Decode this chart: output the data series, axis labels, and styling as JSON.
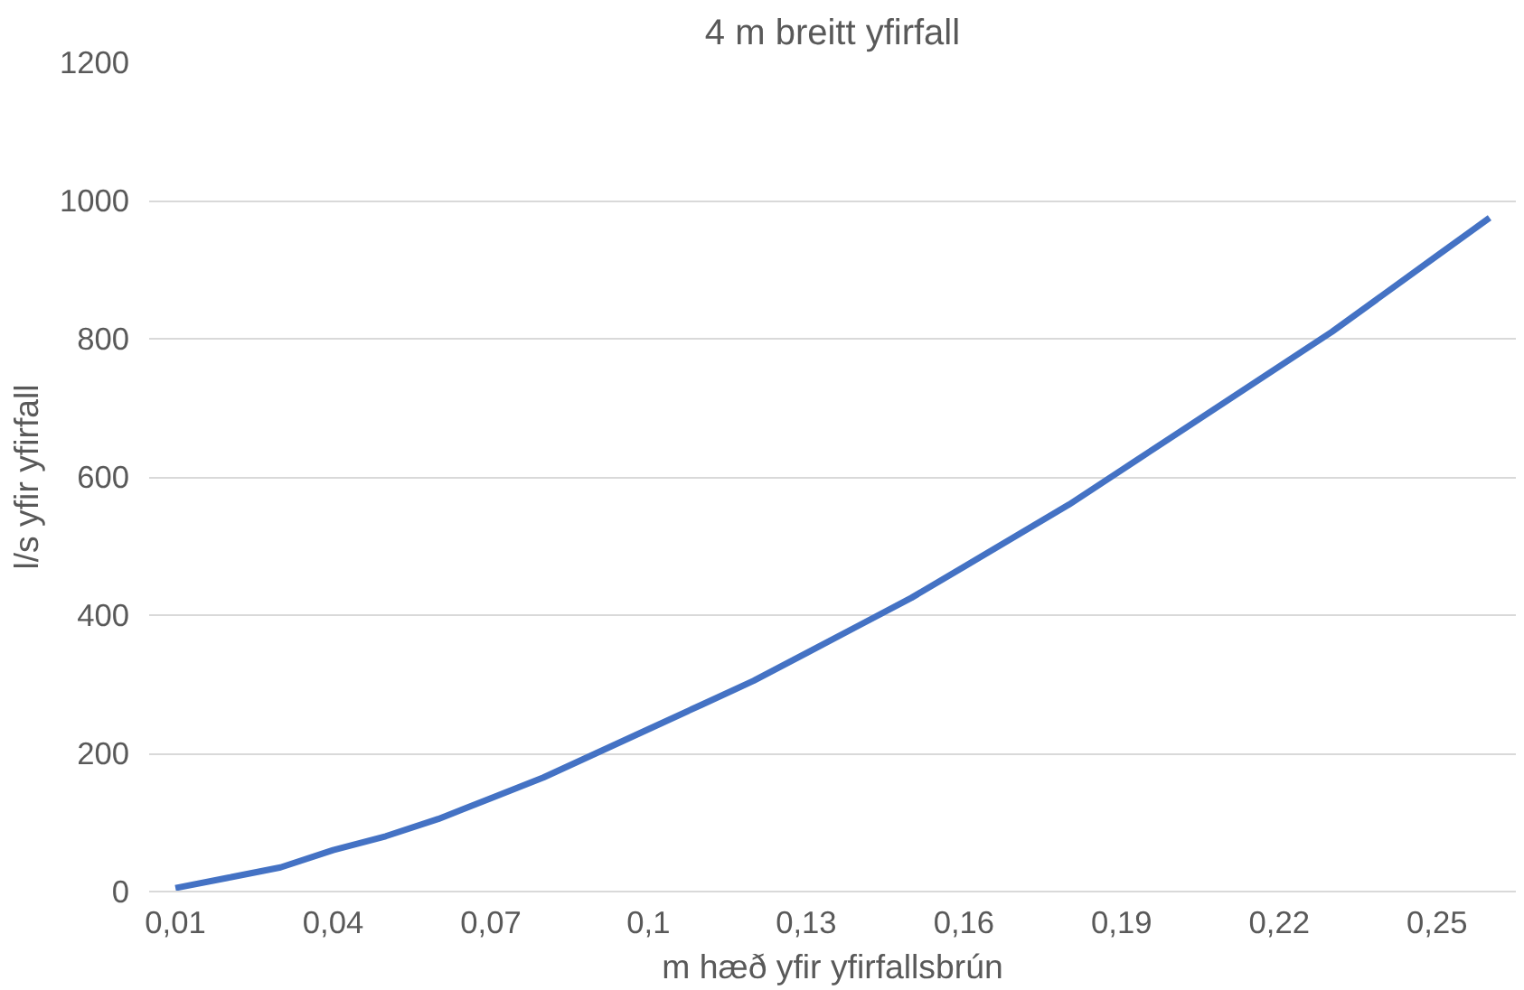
{
  "chart_data": {
    "type": "line",
    "title": "4 m breitt yfirfall",
    "xlabel": "m hæð yfir yfirfallsbrún",
    "ylabel": "l/s yfir yfirfall",
    "categories": [
      "0,01",
      null,
      null,
      "0,04",
      null,
      null,
      "0,07",
      null,
      null,
      "0,1",
      null,
      null,
      "0,13",
      null,
      null,
      "0,16",
      null,
      null,
      "0,19",
      null,
      null,
      "0,22",
      null,
      null,
      "0,25",
      null
    ],
    "series": [
      {
        "color": "#4472c4",
        "values": [
          5,
          20,
          35,
          60,
          80,
          105,
          135,
          165,
          200,
          235,
          270,
          305,
          345,
          385,
          425,
          470,
          515,
          560,
          610,
          660,
          710,
          760,
          810,
          865,
          920,
          975
        ]
      }
    ],
    "ylim": [
      0,
      1200
    ],
    "yticks": [
      0,
      200,
      400,
      600,
      800,
      1000,
      1200
    ],
    "grid": "y",
    "marker": "none",
    "line_style": "solid"
  }
}
